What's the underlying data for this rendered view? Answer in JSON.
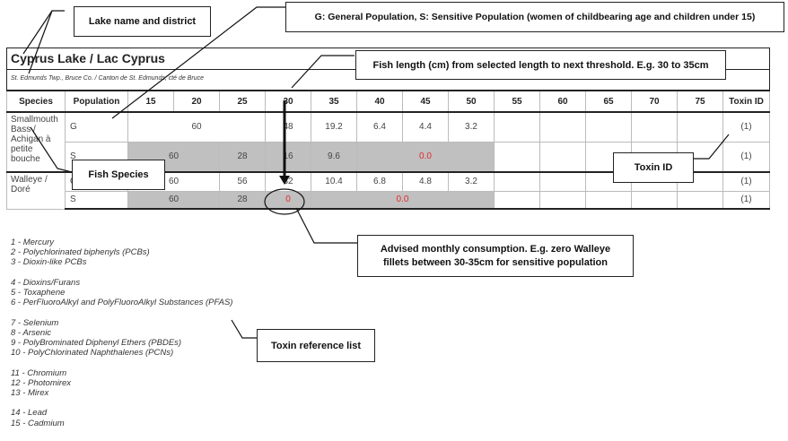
{
  "lake": {
    "title": "Cyprus Lake / Lac Cyprus",
    "district": "St. Edmunds Twp., Bruce Co. / Canton de St. Edmunds, cté de Bruce"
  },
  "table": {
    "headers": [
      "Species",
      "Population",
      "15",
      "20",
      "25",
      "30",
      "35",
      "40",
      "45",
      "50",
      "55",
      "60",
      "65",
      "70",
      "75",
      "Toxin ID"
    ],
    "smallmouth": {
      "species": "Smallmouth Bass / Achigan à petite bouche",
      "g": {
        "pop": "G",
        "v1": "60",
        "v2": "48",
        "v3": "19.2",
        "v4": "6.4",
        "v5": "4.4",
        "v6": "3.2",
        "toxin": "(1)"
      },
      "s": {
        "pop": "S",
        "v1": "60",
        "v2": "28",
        "v3": "16",
        "v4": "9.6",
        "v5": "0.0",
        "toxin": "(1)"
      }
    },
    "walleye": {
      "species": "Walleye / Doré",
      "g": {
        "pop": "G",
        "v1": "60",
        "v2": "56",
        "v3": "32",
        "v4": "10.4",
        "v5": "6.8",
        "v6": "4.8",
        "v7": "3.2",
        "toxin": "(1)"
      },
      "s": {
        "pop": "S",
        "v1": "60",
        "v2": "28",
        "v3": "0",
        "v4": "0.0",
        "toxin": "(1)"
      }
    }
  },
  "callouts": {
    "lake_name": "Lake name and district",
    "population": "G: General Population, S: Sensitive Population (women of childbearing age and children under 15)",
    "fish_length": "Fish length (cm) from selected length to next threshold. E.g. 30 to 35cm",
    "fish_species": "Fish Species",
    "toxin_id": "Toxin ID",
    "advised": "Advised monthly consumption. E.g. zero Walleye fillets between 30-35cm for sensitive population",
    "toxin_ref": "Toxin reference list"
  },
  "toxin_list": [
    "1 - Mercury",
    "2 - Polychlorinated biphenyls (PCBs)",
    "3 - Dioxin-like PCBs",
    "",
    "4 - Dioxins/Furans",
    "5 - Toxaphene",
    "6 - PerFluoroAlkyl and PolyFluoroAlkyl Substances (PFAS)",
    "",
    "7 - Selenium",
    "8 - Arsenic",
    "9 - PolyBrominated Diphenyl Ethers (PBDEs)",
    "10 - PolyChlorinated Naphthalenes (PCNs)",
    "",
    "11 - Chromium",
    "12 - Photomirex",
    "13 - Mirex",
    "",
    "14 - Lead",
    "15 - Cadmium"
  ],
  "colors": {
    "gray_cell": "#c0c0c0",
    "red_value": "#e32b2b"
  }
}
